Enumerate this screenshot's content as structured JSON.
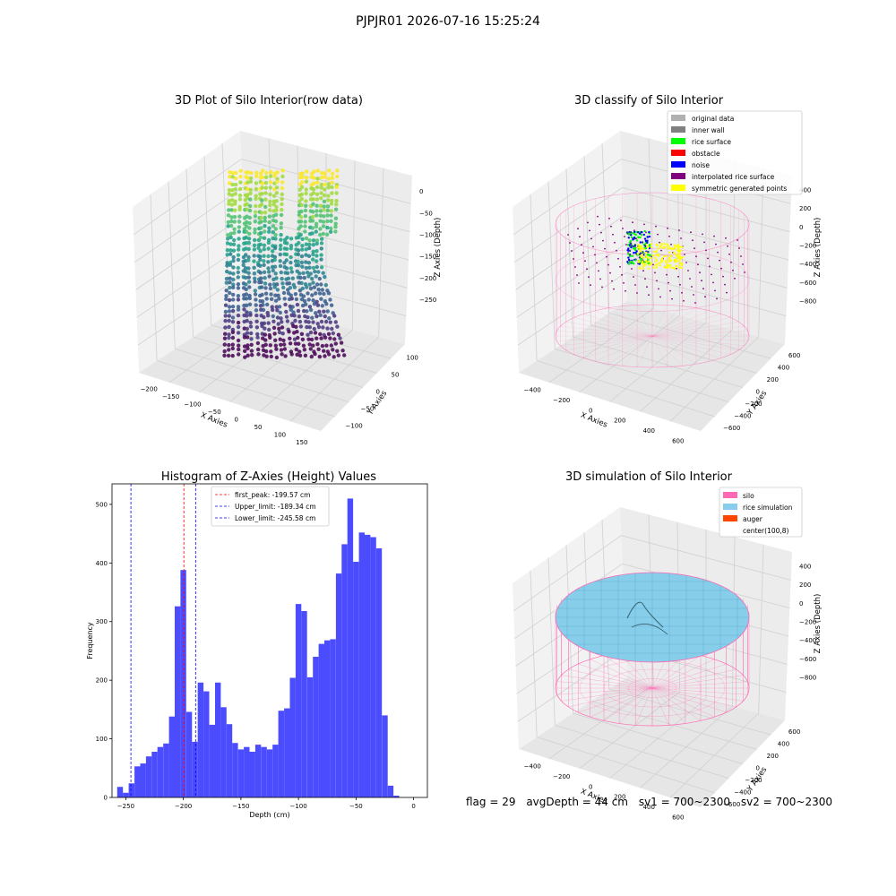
{
  "figure": {
    "suptitle": "PJPJR01 2026-07-16 15:25:24",
    "status": {
      "flag": "flag = 29",
      "avg_depth": "avgDepth = 44 cm",
      "sv1": "sv1 = 700~2300",
      "sv2": "sv2 = 700~2300"
    }
  },
  "colors": {
    "hist_fill": "#4c4cff",
    "first_peak_line": "#ff0000",
    "limit_line": "#0000ff",
    "silo_wire": "#ff69b4",
    "rice_sim": "#87ceeb",
    "auger": "#ff4500",
    "pane_light": "#f2f2f2",
    "pane_mid": "#e6e6e6",
    "pane_dark": "#ececec"
  },
  "chart_data": [
    {
      "type": "scatter",
      "projection": "3d",
      "title": "3D Plot of Silo Interior(row data)",
      "xlabel": "X Axies",
      "ylabel": "Y Axies",
      "zlabel": "Z Axies (Depth)",
      "xticks": [
        "−200",
        "−150",
        "−100",
        "−50",
        "0",
        "50",
        "100",
        "150"
      ],
      "yticks": [
        "−100",
        "−50",
        "0",
        "50",
        "100"
      ],
      "zticks": [
        "0",
        "−50",
        "−100",
        "−150",
        "−200",
        "−250"
      ],
      "colormap": "viridis",
      "grid": true
    },
    {
      "type": "scatter",
      "projection": "3d",
      "title": "3D classify of Silo Interior",
      "xlabel": "X Axies",
      "ylabel": "Y Axies",
      "zlabel": "Z Axies (Depth)",
      "xticks": [
        "−400",
        "−200",
        "0",
        "200",
        "400",
        "600"
      ],
      "yticks": [
        "−600",
        "−400",
        "−200",
        "0",
        "200",
        "400",
        "600"
      ],
      "zticks": [
        "400",
        "200",
        "0",
        "−200",
        "−400",
        "−600",
        "−800"
      ],
      "legend_position": "top-right",
      "legend": [
        {
          "label": "original data",
          "color": "#b0b0b0"
        },
        {
          "label": "inner wall",
          "color": "#808080"
        },
        {
          "label": "rice surface",
          "color": "#00ff00"
        },
        {
          "label": "obstacle",
          "color": "#ff0000"
        },
        {
          "label": "noise",
          "color": "#0000ff"
        },
        {
          "label": "interpolated rice surface",
          "color": "#800080"
        },
        {
          "label": "symmetric generated points",
          "color": "#ffff00"
        }
      ],
      "grid": true
    },
    {
      "type": "bar",
      "title": "Histogram of Z-Axies (Height) Values",
      "xlabel": "Depth (cm)",
      "ylabel": "Frequency",
      "xlim": [
        -262,
        12
      ],
      "ylim": [
        0,
        535
      ],
      "xticks": [
        "−250",
        "−200",
        "−150",
        "−100",
        "−50",
        "0"
      ],
      "yticks": [
        "0",
        "100",
        "200",
        "300",
        "400",
        "500"
      ],
      "bin_start": -257.5,
      "bin_width": 5,
      "values": [
        18,
        8,
        24,
        53,
        58,
        70,
        78,
        86,
        92,
        138,
        326,
        388,
        146,
        95,
        196,
        181,
        124,
        196,
        154,
        125,
        93,
        82,
        86,
        78,
        90,
        86,
        82,
        90,
        148,
        152,
        204,
        330,
        318,
        205,
        240,
        262,
        268,
        270,
        382,
        432,
        510,
        402,
        452,
        448,
        444,
        425,
        140,
        20,
        3
      ],
      "lines": [
        {
          "label": "first_peak: -199.57 cm",
          "value": -199.57,
          "color": "#ff0000"
        },
        {
          "label": "Upper_limit: -189.34 cm",
          "value": -189.34,
          "color": "#0000ff"
        },
        {
          "label": "Lower_limit: -245.58 cm",
          "value": -245.58,
          "color": "#0000ff"
        }
      ],
      "legend_position": "top-center"
    },
    {
      "type": "surface",
      "projection": "3d",
      "title": "3D simulation of Silo Interior",
      "xlabel": "X Axies",
      "ylabel": "Y Axies",
      "zlabel": "Z Axies (Depth)",
      "xticks": [
        "−400",
        "−200",
        "0",
        "200",
        "400",
        "600"
      ],
      "yticks": [
        "−600",
        "−400",
        "−200",
        "0",
        "200",
        "400",
        "600"
      ],
      "zticks": [
        "400",
        "200",
        "0",
        "−200",
        "−400",
        "−600",
        "−800"
      ],
      "legend_position": "top-right",
      "legend": [
        {
          "label": "silo",
          "color": "#ff69b4"
        },
        {
          "label": "rice simulation",
          "color": "#87ceeb"
        },
        {
          "label": "auger",
          "color": "#ff4500"
        },
        {
          "label": "center(100,8)",
          "color": "#ffffff"
        }
      ],
      "grid": true
    }
  ]
}
